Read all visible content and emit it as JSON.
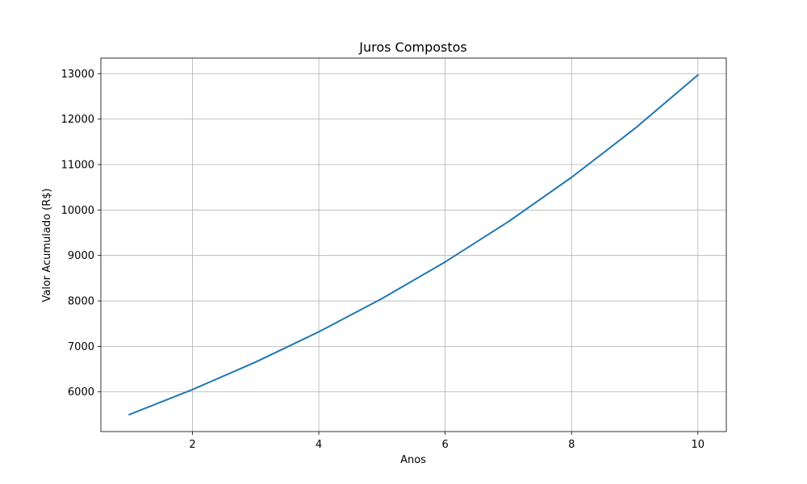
{
  "chart_data": {
    "type": "line",
    "title": "Juros Compostos",
    "xlabel": "Anos",
    "ylabel": "Valor Acumulado (R$)",
    "x": [
      1,
      2,
      3,
      4,
      5,
      6,
      7,
      8,
      9,
      10
    ],
    "series": [
      {
        "values": [
          5500,
          6050,
          6655,
          7320.5,
          8052.55,
          8857.81,
          9743.59,
          10717.94,
          11789.74,
          12968.71
        ],
        "color": "#1f77b4"
      }
    ],
    "xlim": [
      0.55,
      10.45
    ],
    "ylim": [
      5126,
      13342
    ],
    "xticks": [
      2,
      4,
      6,
      8,
      10
    ],
    "yticks": [
      6000,
      7000,
      8000,
      9000,
      10000,
      11000,
      12000,
      13000
    ],
    "xtick_labels": [
      "2",
      "4",
      "6",
      "8",
      "10"
    ],
    "ytick_labels": [
      "6000",
      "7000",
      "8000",
      "9000",
      "10000",
      "11000",
      "12000",
      "13000"
    ],
    "grid": true
  }
}
